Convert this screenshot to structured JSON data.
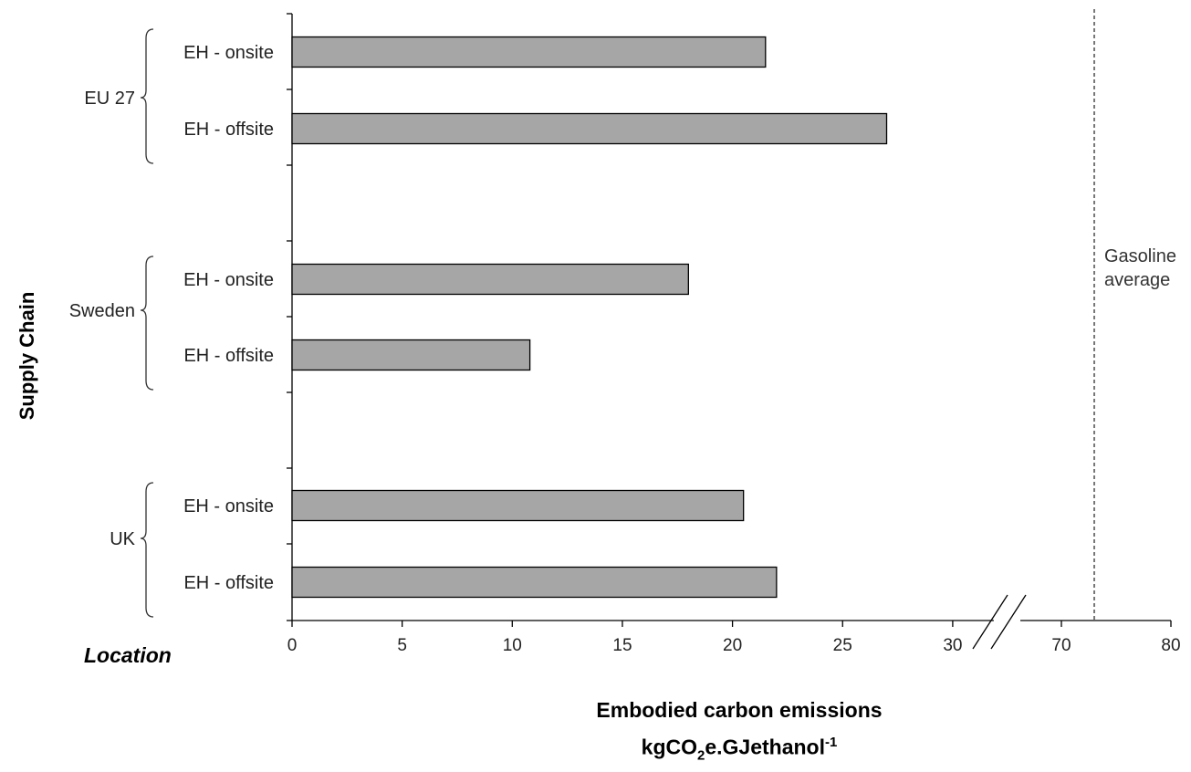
{
  "chart_data": {
    "type": "bar",
    "orientation": "horizontal",
    "groups": [
      {
        "name": "EU 27",
        "categories": [
          "EH - onsite",
          "EH - offsite"
        ],
        "values": [
          21.5,
          27.0
        ]
      },
      {
        "name": "Sweden",
        "categories": [
          "EH - onsite",
          "EH - offsite"
        ],
        "values": [
          18.0,
          10.8
        ]
      },
      {
        "name": "UK",
        "categories": [
          "EH - onsite",
          "EH - offsite"
        ],
        "values": [
          20.5,
          22.0
        ]
      }
    ],
    "xticks": [
      "0",
      "5",
      "10",
      "15",
      "20",
      "25",
      "30",
      "70",
      "80"
    ],
    "xlim": [
      0,
      80
    ],
    "axis_break": [
      30,
      70
    ],
    "reference_line": {
      "value": 73,
      "label_lines": [
        "Gasoline",
        "average"
      ]
    },
    "ylabel": "Supply Chain",
    "location_label": "Location",
    "xlabel_line1": "Embodied carbon emissions",
    "xlabel_line2": {
      "pre": "kgCO",
      "sub": "2",
      "mid": "e.GJethanol",
      "sup": "-1"
    },
    "bar_color": "#a6a6a6"
  }
}
